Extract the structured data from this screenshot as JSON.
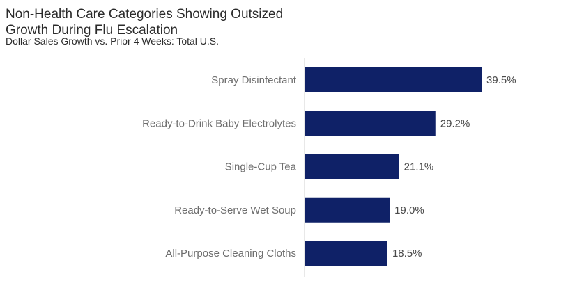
{
  "chart_data": {
    "type": "bar",
    "orientation": "horizontal",
    "title_lines": [
      "Non-Health Care Categories Showing Outsized",
      "Growth During Flu Escalation"
    ],
    "subtitle": "Dollar Sales Growth vs. Prior 4 Weeks: Total U.S.",
    "categories": [
      "Spray Disinfectant",
      "Ready-to-Drink Baby Electrolytes",
      "Single-Cup Tea",
      "Ready-to-Serve Wet Soup",
      "All-Purpose Cleaning Cloths"
    ],
    "values": [
      39.5,
      29.2,
      21.1,
      19.0,
      18.5
    ],
    "value_labels": [
      "39.5%",
      "29.2%",
      "21.1%",
      "19.0%",
      "18.5%"
    ],
    "xlim": [
      0,
      39.5
    ],
    "grid": false,
    "legend": "none",
    "colors": {
      "bar": "#0f2167",
      "axis": "#d0d0d0"
    }
  }
}
